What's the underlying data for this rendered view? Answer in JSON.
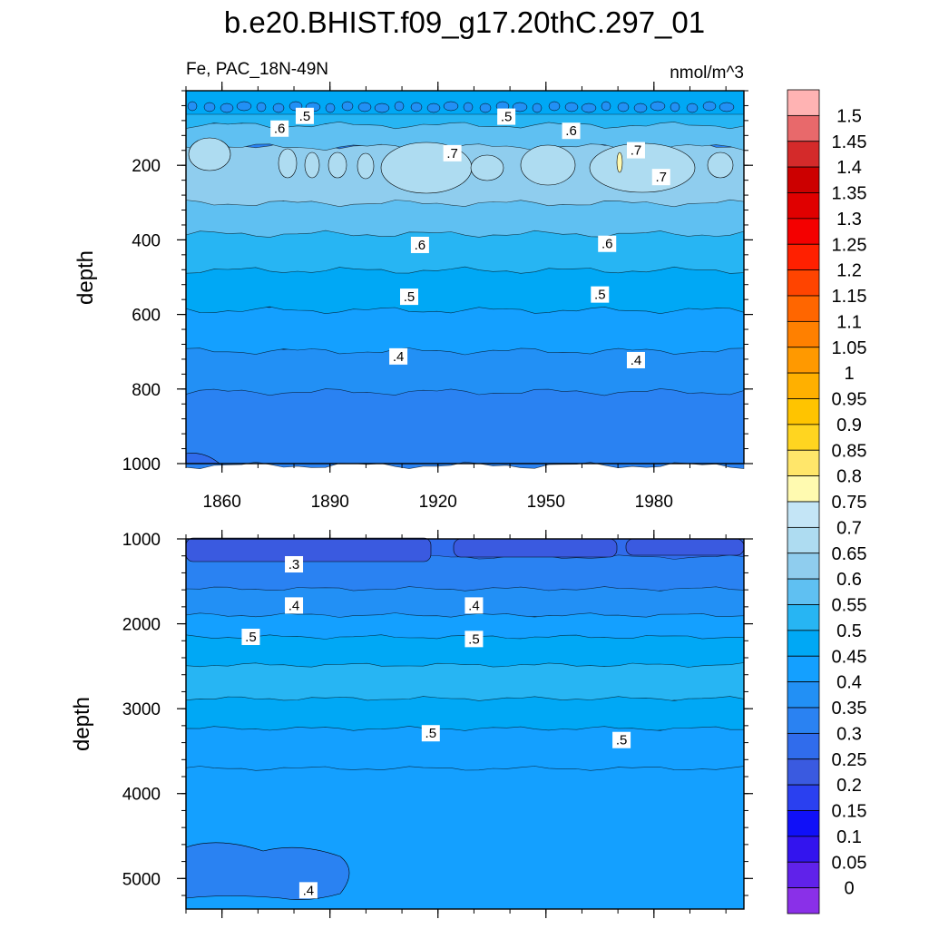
{
  "chart_data": {
    "type": "heatmap",
    "title": "b.e20.BHIST.f09_g17.20thC.297_01",
    "left_subtitle": "Fe, PAC_18N-49N",
    "right_subtitle": "nmol/m^3",
    "x_ticks": [
      "1860",
      "1890",
      "1920",
      "1950",
      "1980"
    ],
    "x_tick_values": [
      1860,
      1890,
      1920,
      1950,
      1980
    ],
    "xlim": [
      1850,
      2005
    ],
    "colorbar": {
      "labels": [
        "1.5",
        "1.45",
        "1.4",
        "1.35",
        "1.3",
        "1.25",
        "1.2",
        "1.15",
        "1.1",
        "1.05",
        "1",
        "0.95",
        "0.9",
        "0.85",
        "0.8",
        "0.75",
        "0.7",
        "0.65",
        "0.6",
        "0.55",
        "0.5",
        "0.45",
        "0.4",
        "0.35",
        "0.3",
        "0.25",
        "0.2",
        "0.15",
        "0.1",
        "0.05",
        "0"
      ],
      "colors": [
        "#ffb3b3",
        "#e8696b",
        "#d42a2a",
        "#cc0000",
        "#e00000",
        "#f40000",
        "#ff2000",
        "#ff4400",
        "#ff6600",
        "#ff8000",
        "#ff9900",
        "#ffb000",
        "#ffc400",
        "#ffd520",
        "#ffe66a",
        "#fffab0",
        "#c4e5f6",
        "#aedcf1",
        "#8fcdee",
        "#5fc0f2",
        "#27b5f3",
        "#00a8f5",
        "#14a0ff",
        "#2290f5",
        "#2a82f2",
        "#306cec",
        "#3a5ae0",
        "#2a40f0",
        "#1010f8",
        "#3314ee",
        "#6022ea",
        "#8a30e8"
      ]
    },
    "panels": [
      {
        "name": "upper",
        "ylabel": "depth",
        "y_ticks": [
          "200",
          "400",
          "600",
          "800",
          "1000"
        ],
        "y_tick_values": [
          200,
          400,
          600,
          800,
          1000
        ],
        "ylim": [
          0,
          1000
        ],
        "contour_labels": [
          {
            "text": ".5",
            "year": 1883,
            "depth": 70
          },
          {
            "text": ".5",
            "year": 1939,
            "depth": 72
          },
          {
            "text": ".6",
            "year": 1876,
            "depth": 104
          },
          {
            "text": ".6",
            "year": 1957,
            "depth": 110
          },
          {
            "text": ".7",
            "year": 1924,
            "depth": 170
          },
          {
            "text": ".7",
            "year": 1975,
            "depth": 162
          },
          {
            "text": ".7",
            "year": 1982,
            "depth": 234
          },
          {
            "text": ".6",
            "year": 1915,
            "depth": 416
          },
          {
            "text": ".6",
            "year": 1967,
            "depth": 413
          },
          {
            "text": ".5",
            "year": 1912,
            "depth": 555
          },
          {
            "text": ".5",
            "year": 1965,
            "depth": 549
          },
          {
            "text": ".4",
            "year": 1909,
            "depth": 715
          },
          {
            "text": ".4",
            "year": 1975,
            "depth": 725
          }
        ]
      },
      {
        "name": "lower",
        "ylabel": "depth",
        "y_ticks": [
          "1000",
          "2000",
          "3000",
          "4000",
          "5000"
        ],
        "y_tick_values": [
          1000,
          2000,
          3000,
          4000,
          5000
        ],
        "ylim": [
          1000,
          5360
        ],
        "contour_labels": [
          {
            "text": ".3",
            "year": 1880,
            "depth": 1310
          },
          {
            "text": ".4",
            "year": 1880,
            "depth": 1795
          },
          {
            "text": ".4",
            "year": 1930,
            "depth": 1795
          },
          {
            "text": ".5",
            "year": 1868,
            "depth": 2165
          },
          {
            "text": ".5",
            "year": 1930,
            "depth": 2190
          },
          {
            "text": ".5",
            "year": 1918,
            "depth": 3300
          },
          {
            "text": ".5",
            "year": 1971,
            "depth": 3380
          },
          {
            "text": ".4",
            "year": 1884,
            "depth": 5150
          }
        ]
      }
    ]
  }
}
